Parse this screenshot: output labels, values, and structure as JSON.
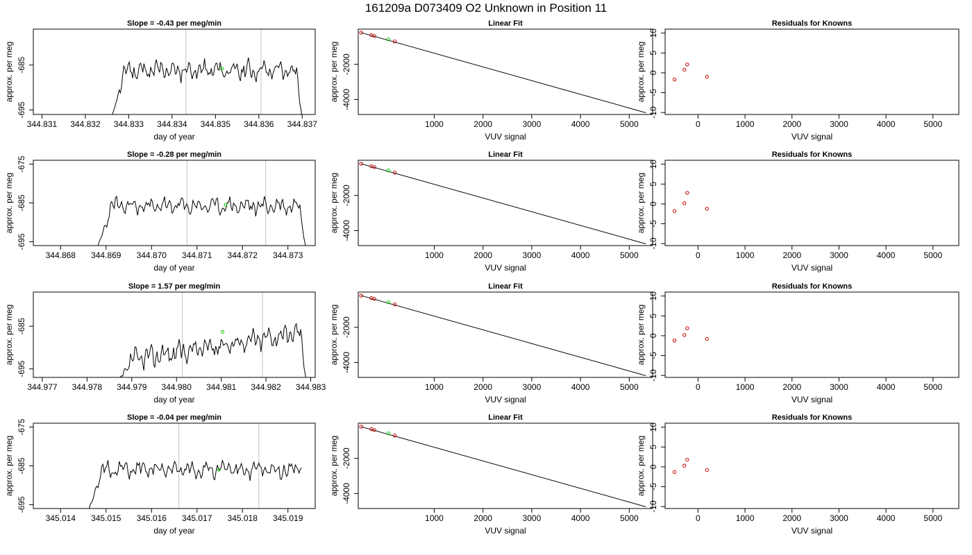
{
  "figure_title": "161209a     D073409   O2 Unknown in Position  11",
  "colors": {
    "trace": "#000000",
    "marker": "#00c800",
    "vline": "#cccccc",
    "known": "#c80000",
    "fit": "#000000"
  },
  "chart_data": [
    {
      "type": "line",
      "title": "Slope =  -0.43  per meg/min",
      "xlabel": "day of year",
      "ylabel": "approx. per meg",
      "xlim": [
        344.8308,
        344.8373
      ],
      "ylim": [
        -696,
        -677
      ],
      "xticks": [
        "344.831",
        "344.832",
        "344.833",
        "344.834",
        "344.835",
        "344.836",
        "344.837"
      ],
      "yticks": [
        "-685",
        "-695"
      ],
      "trace": {
        "x_start": 344.8326,
        "x_end": 344.837,
        "y_start": -697,
        "y_end": -697,
        "mean": -686.2,
        "amplitude": 1.8,
        "seed": 11
      },
      "vlines": [
        344.83432,
        344.83605
      ],
      "marker": {
        "x": 344.83515,
        "y": -685.8
      }
    },
    {
      "type": "scatter",
      "title": "Linear Fit",
      "xlabel": "VUV signal",
      "ylabel": "approx. per meg",
      "xlim": [
        -560,
        5480
      ],
      "ylim": [
        -4850,
        0
      ],
      "xticks": [
        "1000",
        "2000",
        "3000",
        "4000",
        "5000"
      ],
      "yticks": [
        "-2000",
        "-4000"
      ],
      "line": [
        [
          -500,
          -200
        ],
        [
          5340,
          -4750
        ]
      ],
      "knowns": [
        [
          -500,
          -200
        ],
        [
          -290,
          -340
        ],
        [
          -230,
          -390
        ],
        [
          190,
          -700
        ]
      ],
      "unknown": [
        60,
        -580
      ]
    },
    {
      "type": "scatter",
      "title": "Residuals for Knowns",
      "xlabel": "VUV signal",
      "ylabel": "approx. per meg",
      "xlim": [
        -700,
        5550
      ],
      "ylim": [
        -10.5,
        11
      ],
      "xticks": [
        "0",
        "1000",
        "2000",
        "3000",
        "4000",
        "5000"
      ],
      "yticks": [
        "-10",
        "-5",
        "0",
        "5",
        "10"
      ],
      "points": [
        [
          -500,
          -1.7
        ],
        [
          -290,
          0.8
        ],
        [
          -230,
          2.1
        ],
        [
          190,
          -1.0
        ]
      ]
    },
    {
      "type": "line",
      "title": "Slope =  -0.28  per meg/min",
      "xlabel": "day of year",
      "ylabel": "approx. per meg",
      "xlim": [
        344.8674,
        344.8736
      ],
      "ylim": [
        -696,
        -674
      ],
      "xticks": [
        "344.868",
        "344.869",
        "344.870",
        "344.871",
        "344.872",
        "344.873"
      ],
      "yticks": [
        "-675",
        "-685",
        "-695"
      ],
      "trace": {
        "x_start": 344.8688,
        "x_end": 344.8734,
        "y_start": -697,
        "y_end": -697,
        "mean": -685.8,
        "amplitude": 1.8,
        "seed": 23
      },
      "vlines": [
        344.87078,
        344.87251
      ],
      "marker": {
        "x": 344.87163,
        "y": -685.5
      }
    },
    {
      "type": "scatter",
      "title": "Linear Fit",
      "xlabel": "VUV signal",
      "ylabel": "approx. per meg",
      "xlim": [
        -560,
        5480
      ],
      "ylim": [
        -4850,
        0
      ],
      "xticks": [
        "1000",
        "2000",
        "3000",
        "4000",
        "5000"
      ],
      "yticks": [
        "-2000",
        "-4000"
      ],
      "line": [
        [
          -500,
          -200
        ],
        [
          5340,
          -4750
        ]
      ],
      "knowns": [
        [
          -500,
          -200
        ],
        [
          -290,
          -340
        ],
        [
          -230,
          -390
        ],
        [
          190,
          -700
        ]
      ],
      "unknown": [
        60,
        -580
      ]
    },
    {
      "type": "scatter",
      "title": "Residuals for Knowns",
      "xlabel": "VUV signal",
      "ylabel": "approx. per meg",
      "xlim": [
        -700,
        5550
      ],
      "ylim": [
        -10.5,
        11
      ],
      "xticks": [
        "0",
        "1000",
        "2000",
        "3000",
        "4000",
        "5000"
      ],
      "yticks": [
        "-10",
        "-5",
        "0",
        "5",
        "10"
      ],
      "points": [
        [
          -500,
          -1.8
        ],
        [
          -290,
          0.2
        ],
        [
          -230,
          2.8
        ],
        [
          190,
          -1.2
        ]
      ]
    },
    {
      "type": "line",
      "title": "Slope =  1.57  per meg/min",
      "xlabel": "day of year",
      "ylabel": "approx. per meg",
      "xlim": [
        344.9768,
        344.9831
      ],
      "ylim": [
        -697,
        -677
      ],
      "xticks": [
        "344.977",
        "344.978",
        "344.979",
        "344.980",
        "344.981",
        "344.982",
        "344.983"
      ],
      "yticks": [
        "-685",
        "-695"
      ],
      "trace": {
        "x_start": 344.9787,
        "x_end": 344.9829,
        "y_start": -698,
        "y_end": -698,
        "mean": -689.8,
        "amplitude": 2.0,
        "seed": 37,
        "drift": 7.0
      },
      "vlines": [
        344.98013,
        344.98192
      ],
      "marker": {
        "x": 344.98103,
        "y": -686.3
      }
    },
    {
      "type": "scatter",
      "title": "Linear Fit",
      "xlabel": "VUV signal",
      "ylabel": "approx. per meg",
      "xlim": [
        -560,
        5480
      ],
      "ylim": [
        -4850,
        0
      ],
      "xticks": [
        "1000",
        "2000",
        "3000",
        "4000",
        "5000"
      ],
      "yticks": [
        "-2000",
        "-4000"
      ],
      "line": [
        [
          -500,
          -200
        ],
        [
          5340,
          -4750
        ]
      ],
      "knowns": [
        [
          -500,
          -200
        ],
        [
          -290,
          -340
        ],
        [
          -230,
          -390
        ],
        [
          190,
          -700
        ]
      ],
      "unknown": [
        60,
        -580
      ]
    },
    {
      "type": "scatter",
      "title": "Residuals for Knowns",
      "xlabel": "VUV signal",
      "ylabel": "approx. per meg",
      "xlim": [
        -700,
        5550
      ],
      "ylim": [
        -10.5,
        11
      ],
      "xticks": [
        "0",
        "1000",
        "2000",
        "3000",
        "4000",
        "5000"
      ],
      "yticks": [
        "-10",
        "-5",
        "0",
        "5",
        "10"
      ],
      "points": [
        [
          -500,
          -1.2
        ],
        [
          -290,
          0.2
        ],
        [
          -230,
          1.9
        ],
        [
          190,
          -0.8
        ]
      ]
    },
    {
      "type": "line",
      "title": "Slope =  -0.04  per meg/min",
      "xlabel": "day of year",
      "ylabel": "approx. per meg",
      "xlim": [
        345.0134,
        345.0196
      ],
      "ylim": [
        -696,
        -674
      ],
      "xticks": [
        "345.014",
        "345.015",
        "345.016",
        "345.017",
        "345.018",
        "345.019"
      ],
      "yticks": [
        "-675",
        "-685",
        "-695"
      ],
      "trace": {
        "x_start": 345.0146,
        "x_end": 345.0193,
        "y_start": -697,
        "y_end": -685.5,
        "mean": -686.0,
        "amplitude": 1.8,
        "seed": 51
      },
      "vlines": [
        345.0166,
        345.01836
      ],
      "marker": {
        "x": 345.01748,
        "y": -686.0
      }
    },
    {
      "type": "scatter",
      "title": "Linear Fit",
      "xlabel": "VUV signal",
      "ylabel": "approx. per meg",
      "xlim": [
        -560,
        5480
      ],
      "ylim": [
        -4850,
        0
      ],
      "xticks": [
        "1000",
        "2000",
        "3000",
        "4000",
        "5000"
      ],
      "yticks": [
        "-2000",
        "-4000"
      ],
      "line": [
        [
          -500,
          -200
        ],
        [
          5340,
          -4750
        ]
      ],
      "knowns": [
        [
          -500,
          -200
        ],
        [
          -290,
          -340
        ],
        [
          -230,
          -390
        ],
        [
          190,
          -700
        ]
      ],
      "unknown": [
        60,
        -580
      ]
    },
    {
      "type": "scatter",
      "title": "Residuals for Knowns",
      "xlabel": "VUV signal",
      "ylabel": "approx. per meg",
      "xlim": [
        -700,
        5550
      ],
      "ylim": [
        -10.5,
        11
      ],
      "xticks": [
        "0",
        "1000",
        "2000",
        "3000",
        "4000",
        "5000"
      ],
      "yticks": [
        "-10",
        "-5",
        "0",
        "5",
        "10"
      ],
      "points": [
        [
          -500,
          -1.3
        ],
        [
          -290,
          0.3
        ],
        [
          -230,
          1.8
        ],
        [
          190,
          -0.8
        ]
      ]
    }
  ]
}
